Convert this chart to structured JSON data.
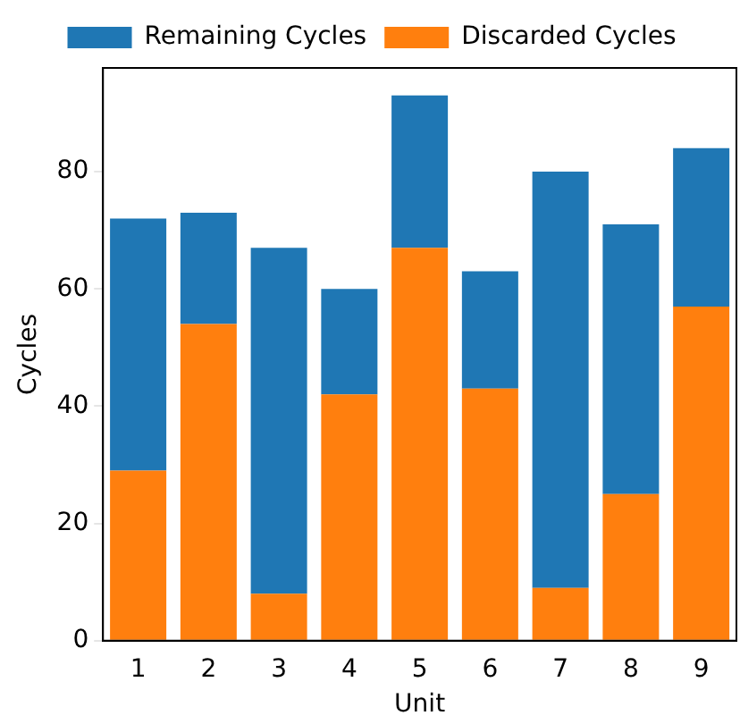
{
  "chart_data": {
    "type": "bar",
    "stacked": true,
    "xlabel": "Unit",
    "ylabel": "Cycles",
    "categories": [
      "1",
      "2",
      "3",
      "4",
      "5",
      "6",
      "7",
      "8",
      "9"
    ],
    "series": [
      {
        "name": "Discarded Cycles",
        "color": "#ff7f0e",
        "values": [
          29,
          54,
          8,
          42,
          67,
          43,
          9,
          25,
          57
        ]
      },
      {
        "name": "Remaining Cycles",
        "color": "#1f77b4",
        "values": [
          43,
          19,
          59,
          18,
          26,
          20,
          71,
          46,
          27
        ]
      }
    ],
    "ylim": [
      0,
      97.7
    ],
    "yticks": [
      0,
      20,
      40,
      60,
      80
    ],
    "grid": false,
    "legend": "top"
  }
}
